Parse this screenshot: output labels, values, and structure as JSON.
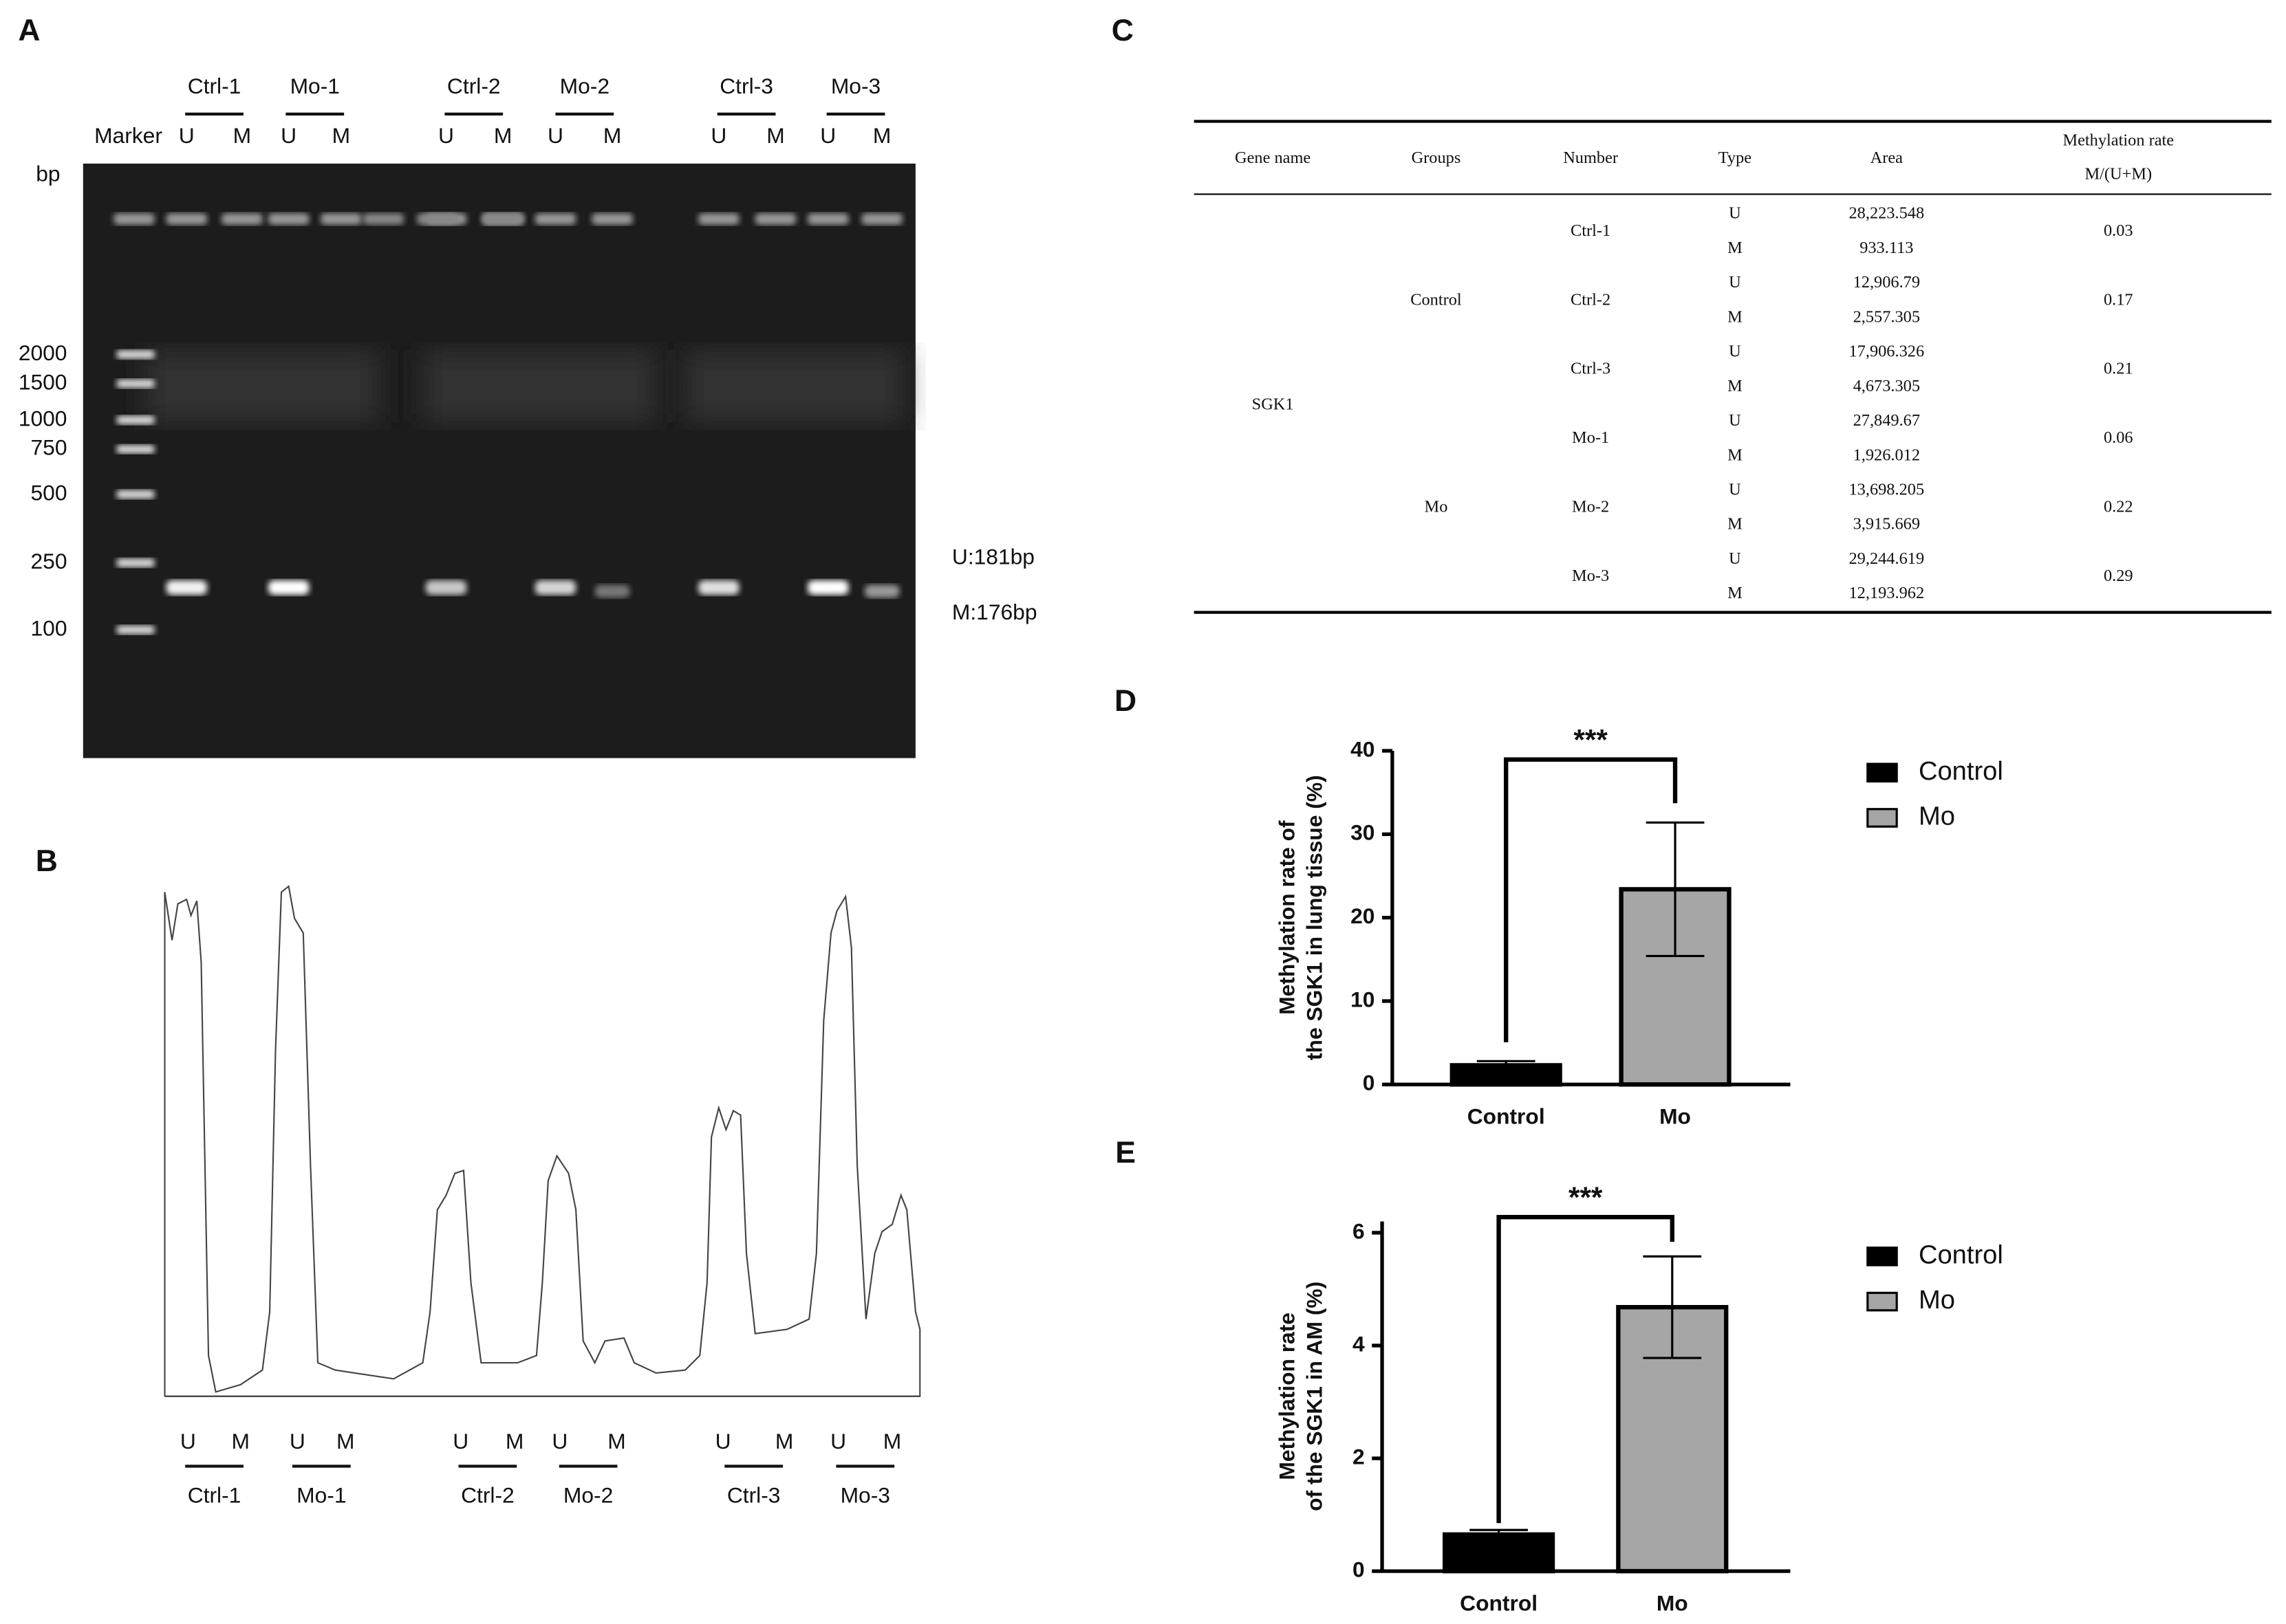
{
  "panels": [
    "A",
    "B",
    "C",
    "D",
    "E"
  ],
  "gel": {
    "marker_label": "Marker",
    "unit": "bp",
    "marker_sizes": [
      2000,
      1500,
      1000,
      750,
      500,
      250,
      100
    ],
    "lanes": [
      {
        "name": "Ctrl-1",
        "types": [
          "U",
          "M"
        ]
      },
      {
        "name": "Mo-1",
        "types": [
          "U",
          "M"
        ]
      },
      {
        "name": "Ctrl-2",
        "types": [
          "U",
          "M"
        ]
      },
      {
        "name": "Mo-2",
        "types": [
          "U",
          "M"
        ]
      },
      {
        "name": "Ctrl-3",
        "types": [
          "U",
          "M"
        ]
      },
      {
        "name": "Mo-3",
        "types": [
          "U",
          "M"
        ]
      }
    ],
    "band_labels": [
      "U:181bp",
      "M:176bp"
    ]
  },
  "trace": {
    "lanes": [
      {
        "name": "Ctrl-1",
        "types": [
          "U",
          "M"
        ]
      },
      {
        "name": "Mo-1",
        "types": [
          "U",
          "M"
        ]
      },
      {
        "name": "Ctrl-2",
        "types": [
          "U",
          "M"
        ]
      },
      {
        "name": "Mo-2",
        "types": [
          "U",
          "M"
        ]
      },
      {
        "name": "Ctrl-3",
        "types": [
          "U",
          "M"
        ]
      },
      {
        "name": "Mo-3",
        "types": [
          "U",
          "M"
        ]
      }
    ]
  },
  "table": {
    "headers": [
      "Gene name",
      "Groups",
      "Number",
      "Type",
      "Area",
      "Methylation rate",
      "M/(U+M)"
    ],
    "gene": "SGK1",
    "groups": [
      {
        "name": "Control",
        "samples": [
          {
            "number": "Ctrl-1",
            "rows": [
              [
                "U",
                "28,223.548"
              ],
              [
                "M",
                "933.113"
              ]
            ],
            "rate": "0.03"
          },
          {
            "number": "Ctrl-2",
            "rows": [
              [
                "U",
                "12,906.79"
              ],
              [
                "M",
                "2,557.305"
              ]
            ],
            "rate": "0.17"
          },
          {
            "number": "Ctrl-3",
            "rows": [
              [
                "U",
                "17,906.326"
              ],
              [
                "M",
                "4,673.305"
              ]
            ],
            "rate": "0.21"
          }
        ]
      },
      {
        "name": "Mo",
        "samples": [
          {
            "number": "Mo-1",
            "rows": [
              [
                "U",
                "27,849.67"
              ],
              [
                "M",
                "1,926.012"
              ]
            ],
            "rate": "0.06"
          },
          {
            "number": "Mo-2",
            "rows": [
              [
                "U",
                "13,698.205"
              ],
              [
                "M",
                "3,915.669"
              ]
            ],
            "rate": "0.22"
          },
          {
            "number": "Mo-3",
            "rows": [
              [
                "U",
                "29,244.619"
              ],
              [
                "M",
                "12,193.962"
              ]
            ],
            "rate": "0.29"
          }
        ]
      }
    ]
  },
  "chart_data": [
    {
      "type": "bar",
      "y_label": [
        "Methylation rate of",
        "the SGK1  in lung tissue (%)"
      ],
      "categories": [
        "Control",
        "Mo"
      ],
      "series": [
        {
          "name": "Control",
          "color": "#000000",
          "values": [
            2.3,
            null
          ],
          "errors": [
            0.5,
            null
          ]
        },
        {
          "name": "Mo",
          "color": "#a6a6a6",
          "values": [
            null,
            23.4
          ],
          "errors": [
            null,
            8.0
          ]
        }
      ],
      "ylim": [
        0,
        40
      ],
      "yticks": [
        0,
        10,
        20,
        30,
        40
      ],
      "significance": "***"
    },
    {
      "type": "bar",
      "y_label": [
        "Methylation rate",
        "of the SGK1 in AM (%)"
      ],
      "categories": [
        "Control",
        "Mo"
      ],
      "series": [
        {
          "name": "Control",
          "color": "#000000",
          "values": [
            0.65,
            null
          ],
          "errors": [
            0.08,
            null
          ]
        },
        {
          "name": "Mo",
          "color": "#a6a6a6",
          "values": [
            null,
            4.68
          ],
          "errors": [
            null,
            0.9
          ]
        }
      ],
      "ylim": [
        0,
        6.2
      ],
      "yticks": [
        0,
        2,
        4,
        6
      ],
      "significance": "***"
    }
  ]
}
